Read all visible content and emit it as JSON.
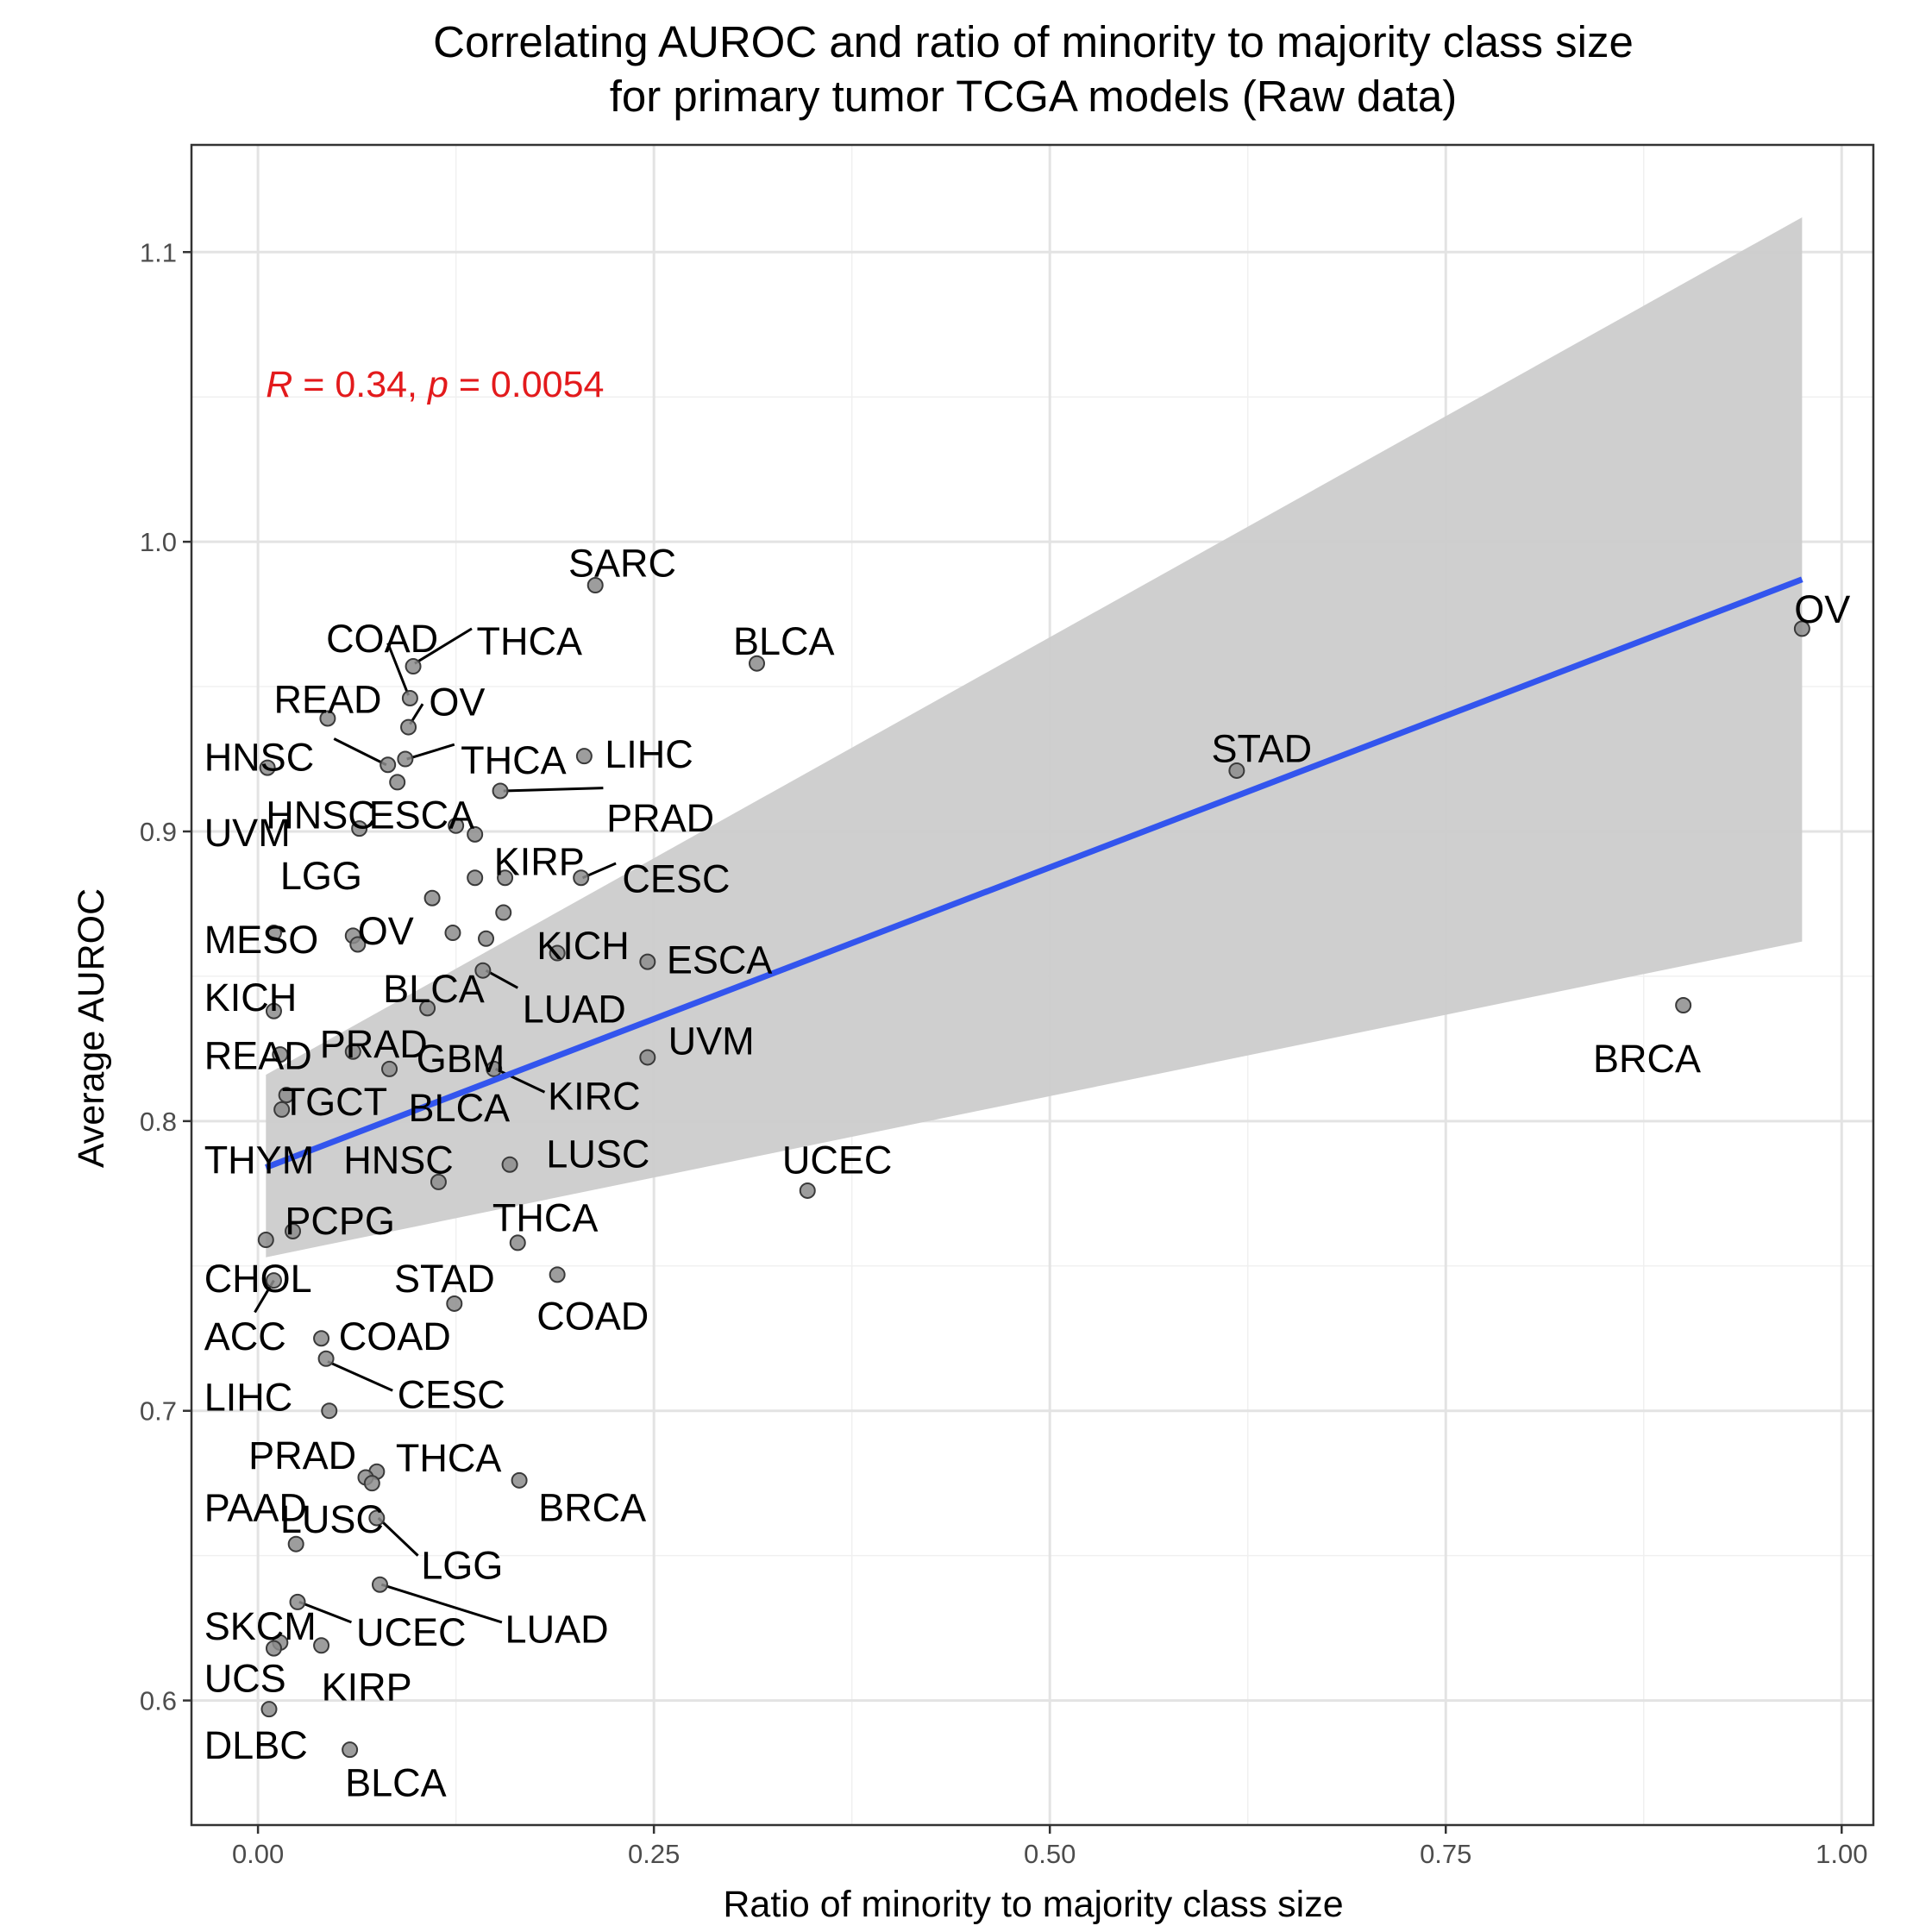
{
  "chart_data": {
    "type": "scatter",
    "title_line1": "Correlating AUROC and ratio of minority to majority class size",
    "title_line2": "for primary tumor TCGA models (Raw data)",
    "xlabel": "Ratio of minority to majority class size",
    "ylabel": "Average AUROC",
    "xlim": [
      -0.042,
      1.02
    ],
    "ylim": [
      0.557,
      1.137
    ],
    "x_ticks": [
      0.0,
      0.25,
      0.5,
      0.75,
      1.0
    ],
    "x_tick_labels": [
      "0.00",
      "0.25",
      "0.50",
      "0.75",
      "1.00"
    ],
    "y_ticks": [
      0.6,
      0.7,
      0.8,
      0.9,
      1.0,
      1.1
    ],
    "y_tick_labels": [
      "0.6",
      "0.7",
      "0.8",
      "0.9",
      "1.0",
      "1.1"
    ],
    "grid": true,
    "annotation": {
      "r_symbol": "R",
      "r_text": " = 0.34, ",
      "p_symbol": "p",
      "p_text": " = 0.0054",
      "x": 0.005,
      "y": 1.05,
      "color": "#e31a1c"
    },
    "regression": {
      "x": [
        0.005,
        0.975
      ],
      "y": [
        0.784,
        0.987
      ],
      "color": "#3355ee",
      "ci_upper": [
        0.816,
        1.112
      ],
      "ci_lower": [
        0.753,
        0.862
      ],
      "ci_color": "#cccccc"
    },
    "point_color": "#8c8c8c",
    "points": [
      {
        "x": 0.213,
        "y": 0.985
      },
      {
        "x": 0.315,
        "y": 0.958
      },
      {
        "x": 0.975,
        "y": 0.97
      },
      {
        "x": 0.098,
        "y": 0.957
      },
      {
        "x": 0.096,
        "y": 0.946
      },
      {
        "x": 0.095,
        "y": 0.936
      },
      {
        "x": 0.044,
        "y": 0.939
      },
      {
        "x": 0.082,
        "y": 0.923
      },
      {
        "x": 0.093,
        "y": 0.925
      },
      {
        "x": 0.206,
        "y": 0.926
      },
      {
        "x": 0.006,
        "y": 0.922
      },
      {
        "x": 0.088,
        "y": 0.917
      },
      {
        "x": 0.153,
        "y": 0.914
      },
      {
        "x": 0.618,
        "y": 0.921
      },
      {
        "x": 0.064,
        "y": 0.901
      },
      {
        "x": 0.125,
        "y": 0.902
      },
      {
        "x": 0.137,
        "y": 0.899
      },
      {
        "x": 0.137,
        "y": 0.884
      },
      {
        "x": 0.156,
        "y": 0.884
      },
      {
        "x": 0.204,
        "y": 0.884
      },
      {
        "x": 0.11,
        "y": 0.877
      },
      {
        "x": 0.155,
        "y": 0.872
      },
      {
        "x": 0.06,
        "y": 0.864
      },
      {
        "x": 0.063,
        "y": 0.861
      },
      {
        "x": 0.01,
        "y": 0.865
      },
      {
        "x": 0.123,
        "y": 0.865
      },
      {
        "x": 0.144,
        "y": 0.863
      },
      {
        "x": 0.189,
        "y": 0.858
      },
      {
        "x": 0.246,
        "y": 0.855
      },
      {
        "x": 0.142,
        "y": 0.852
      },
      {
        "x": 0.107,
        "y": 0.839
      },
      {
        "x": 0.01,
        "y": 0.838
      },
      {
        "x": 0.9,
        "y": 0.84
      },
      {
        "x": 0.014,
        "y": 0.823
      },
      {
        "x": 0.06,
        "y": 0.824
      },
      {
        "x": 0.083,
        "y": 0.818
      },
      {
        "x": 0.149,
        "y": 0.818
      },
      {
        "x": 0.246,
        "y": 0.822
      },
      {
        "x": 0.018,
        "y": 0.809
      },
      {
        "x": 0.015,
        "y": 0.804
      },
      {
        "x": 0.159,
        "y": 0.785
      },
      {
        "x": 0.114,
        "y": 0.779
      },
      {
        "x": 0.347,
        "y": 0.776
      },
      {
        "x": 0.005,
        "y": 0.759
      },
      {
        "x": 0.022,
        "y": 0.762
      },
      {
        "x": 0.164,
        "y": 0.758
      },
      {
        "x": 0.189,
        "y": 0.747
      },
      {
        "x": 0.01,
        "y": 0.745
      },
      {
        "x": 0.124,
        "y": 0.737
      },
      {
        "x": 0.04,
        "y": 0.725
      },
      {
        "x": 0.043,
        "y": 0.718
      },
      {
        "x": 0.045,
        "y": 0.7
      },
      {
        "x": 0.075,
        "y": 0.679
      },
      {
        "x": 0.068,
        "y": 0.677
      },
      {
        "x": 0.072,
        "y": 0.675
      },
      {
        "x": 0.165,
        "y": 0.676
      },
      {
        "x": 0.075,
        "y": 0.663
      },
      {
        "x": 0.024,
        "y": 0.654
      },
      {
        "x": 0.077,
        "y": 0.64
      },
      {
        "x": 0.025,
        "y": 0.634
      },
      {
        "x": 0.014,
        "y": 0.62
      },
      {
        "x": 0.04,
        "y": 0.619
      },
      {
        "x": 0.01,
        "y": 0.618
      },
      {
        "x": 0.007,
        "y": 0.597
      },
      {
        "x": 0.058,
        "y": 0.583
      }
    ],
    "labels": [
      {
        "text": "SARC",
        "x": 0.196,
        "y": 0.988
      },
      {
        "text": "BLCA",
        "x": 0.3,
        "y": 0.961
      },
      {
        "text": "OV",
        "x": 0.97,
        "y": 0.972
      },
      {
        "text": "COAD",
        "x": 0.043,
        "y": 0.962
      },
      {
        "text": "THCA",
        "x": 0.138,
        "y": 0.961
      },
      {
        "text": "READ",
        "x": 0.01,
        "y": 0.941
      },
      {
        "text": "OV",
        "x": 0.108,
        "y": 0.94
      },
      {
        "text": "HNSC",
        "x": -0.034,
        "y": 0.921
      },
      {
        "text": "THCA",
        "x": 0.128,
        "y": 0.92
      },
      {
        "text": "LIHC",
        "x": 0.219,
        "y": 0.922
      },
      {
        "text": "PRAD",
        "x": 0.22,
        "y": 0.9
      },
      {
        "text": "UVM",
        "x": -0.034,
        "y": 0.895
      },
      {
        "text": "HNSC",
        "x": 0.005,
        "y": 0.901
      },
      {
        "text": "ESCA",
        "x": 0.07,
        "y": 0.901
      },
      {
        "text": "STAD",
        "x": 0.602,
        "y": 0.924
      },
      {
        "text": "LGG",
        "x": 0.014,
        "y": 0.88
      },
      {
        "text": "KIRP",
        "x": 0.149,
        "y": 0.885
      },
      {
        "text": "CESC",
        "x": 0.23,
        "y": 0.879
      },
      {
        "text": "MESO",
        "x": -0.034,
        "y": 0.858
      },
      {
        "text": "OV",
        "x": 0.063,
        "y": 0.861
      },
      {
        "text": "KICH",
        "x": 0.176,
        "y": 0.856
      },
      {
        "text": "ESCA",
        "x": 0.258,
        "y": 0.851
      },
      {
        "text": "BLCA",
        "x": 0.079,
        "y": 0.841
      },
      {
        "text": "LUAD",
        "x": 0.167,
        "y": 0.834
      },
      {
        "text": "KICH",
        "x": -0.034,
        "y": 0.838
      },
      {
        "text": "READ",
        "x": -0.034,
        "y": 0.818
      },
      {
        "text": "PRAD",
        "x": 0.039,
        "y": 0.822
      },
      {
        "text": "GBM",
        "x": 0.1,
        "y": 0.817
      },
      {
        "text": "UVM",
        "x": 0.259,
        "y": 0.823
      },
      {
        "text": "BRCA",
        "x": 0.843,
        "y": 0.817
      },
      {
        "text": "TGCT",
        "x": 0.015,
        "y": 0.802
      },
      {
        "text": "BLCA",
        "x": 0.095,
        "y": 0.8
      },
      {
        "text": "KIRC",
        "x": 0.183,
        "y": 0.804
      },
      {
        "text": "THYM",
        "x": -0.034,
        "y": 0.782
      },
      {
        "text": "HNSC",
        "x": 0.054,
        "y": 0.782
      },
      {
        "text": "LUSC",
        "x": 0.182,
        "y": 0.784
      },
      {
        "text": "UCEC",
        "x": 0.331,
        "y": 0.782
      },
      {
        "text": "PCPG",
        "x": 0.017,
        "y": 0.761
      },
      {
        "text": "THCA",
        "x": 0.148,
        "y": 0.762
      },
      {
        "text": "CHOL",
        "x": -0.034,
        "y": 0.741
      },
      {
        "text": "STAD",
        "x": 0.086,
        "y": 0.741
      },
      {
        "text": "COAD",
        "x": 0.176,
        "y": 0.728
      },
      {
        "text": "ACC",
        "x": -0.034,
        "y": 0.721
      },
      {
        "text": "COAD",
        "x": 0.051,
        "y": 0.721
      },
      {
        "text": "CESC",
        "x": 0.088,
        "y": 0.701
      },
      {
        "text": "LIHC",
        "x": -0.034,
        "y": 0.7
      },
      {
        "text": "PRAD",
        "x": -0.006,
        "y": 0.68
      },
      {
        "text": "THCA",
        "x": 0.087,
        "y": 0.679
      },
      {
        "text": "BRCA",
        "x": 0.177,
        "y": 0.662
      },
      {
        "text": "PAAD",
        "x": -0.034,
        "y": 0.662
      },
      {
        "text": "LUSC",
        "x": 0.014,
        "y": 0.658
      },
      {
        "text": "LGG",
        "x": 0.103,
        "y": 0.642
      },
      {
        "text": "SKCM",
        "x": -0.034,
        "y": 0.621
      },
      {
        "text": "UCEC",
        "x": 0.062,
        "y": 0.619
      },
      {
        "text": "LUAD",
        "x": 0.156,
        "y": 0.62
      },
      {
        "text": "UCS",
        "x": -0.034,
        "y": 0.603
      },
      {
        "text": "KIRP",
        "x": 0.04,
        "y": 0.6
      },
      {
        "text": "DLBC",
        "x": -0.034,
        "y": 0.58
      },
      {
        "text": "BLCA",
        "x": 0.055,
        "y": 0.567
      }
    ],
    "leaders": [
      {
        "x1": 0.082,
        "y1": 0.965,
        "x2": 0.095,
        "y2": 0.947
      },
      {
        "x1": 0.135,
        "y1": 0.97,
        "x2": 0.099,
        "y2": 0.958
      },
      {
        "x1": 0.104,
        "y1": 0.944,
        "x2": 0.096,
        "y2": 0.937
      },
      {
        "x1": 0.048,
        "y1": 0.932,
        "x2": 0.081,
        "y2": 0.923
      },
      {
        "x1": 0.124,
        "y1": 0.93,
        "x2": 0.094,
        "y2": 0.925
      },
      {
        "x1": 0.218,
        "y1": 0.915,
        "x2": 0.155,
        "y2": 0.914
      },
      {
        "x1": 0.226,
        "y1": 0.889,
        "x2": 0.205,
        "y2": 0.884
      },
      {
        "x1": 0.164,
        "y1": 0.846,
        "x2": 0.144,
        "y2": 0.852
      },
      {
        "x1": 0.181,
        "y1": 0.81,
        "x2": 0.15,
        "y2": 0.818
      },
      {
        "x1": -0.002,
        "y1": 0.734,
        "x2": 0.01,
        "y2": 0.745
      },
      {
        "x1": 0.085,
        "y1": 0.707,
        "x2": 0.044,
        "y2": 0.717
      },
      {
        "x1": 0.101,
        "y1": 0.65,
        "x2": 0.076,
        "y2": 0.663
      },
      {
        "x1": 0.154,
        "y1": 0.627,
        "x2": 0.078,
        "y2": 0.64
      },
      {
        "x1": 0.059,
        "y1": 0.627,
        "x2": 0.026,
        "y2": 0.634
      }
    ]
  }
}
